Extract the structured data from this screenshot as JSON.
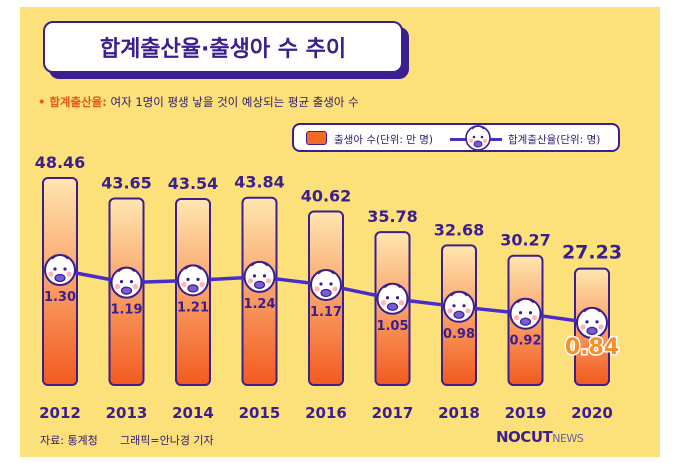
{
  "title": "합계출산율·출생아 수 추이",
  "note": {
    "label": "• 합계출산율:",
    "text": " 여자 1명이 평생 낳을 것이 예상되는 평균 출생아 수"
  },
  "legend": {
    "births": "출생아 수(단위: 만 명)",
    "fertility": "합계출산율(단위: 명)"
  },
  "source": "자료: 통계청",
  "credit": "그래픽=안나경 기자",
  "logo": {
    "main": "NOCUT",
    "sub": "NEWS"
  },
  "colors": {
    "background": "#fce07a",
    "outline": "#3b1f8f",
    "bar_top": "#ffe6b0",
    "bar_bottom": "#f25a1e",
    "line": "#4a2cc8",
    "highlight": "#f7902a"
  },
  "chart_data": {
    "type": "bar",
    "title": "합계출산율·출생아 수 추이",
    "categories": [
      "2012",
      "2013",
      "2014",
      "2015",
      "2016",
      "2017",
      "2018",
      "2019",
      "2020"
    ],
    "series": [
      {
        "name": "출생아 수(단위: 만 명)",
        "type": "bar",
        "values": [
          48.46,
          43.65,
          43.54,
          43.84,
          40.62,
          35.78,
          32.68,
          30.27,
          27.23
        ],
        "labels": [
          "48.46",
          "43.65",
          "43.54",
          "43.84",
          "40.62",
          "35.78",
          "32.68",
          "30.27",
          "27.23"
        ]
      },
      {
        "name": "합계출산율(단위: 명)",
        "type": "line",
        "values": [
          1.3,
          1.19,
          1.21,
          1.24,
          1.17,
          1.05,
          0.98,
          0.92,
          0.84
        ],
        "labels": [
          "1.30",
          "1.19",
          "1.21",
          "1.24",
          "1.17",
          "1.05",
          "0.98",
          "0.92",
          "0.84"
        ]
      }
    ],
    "highlight_index": 8
  }
}
